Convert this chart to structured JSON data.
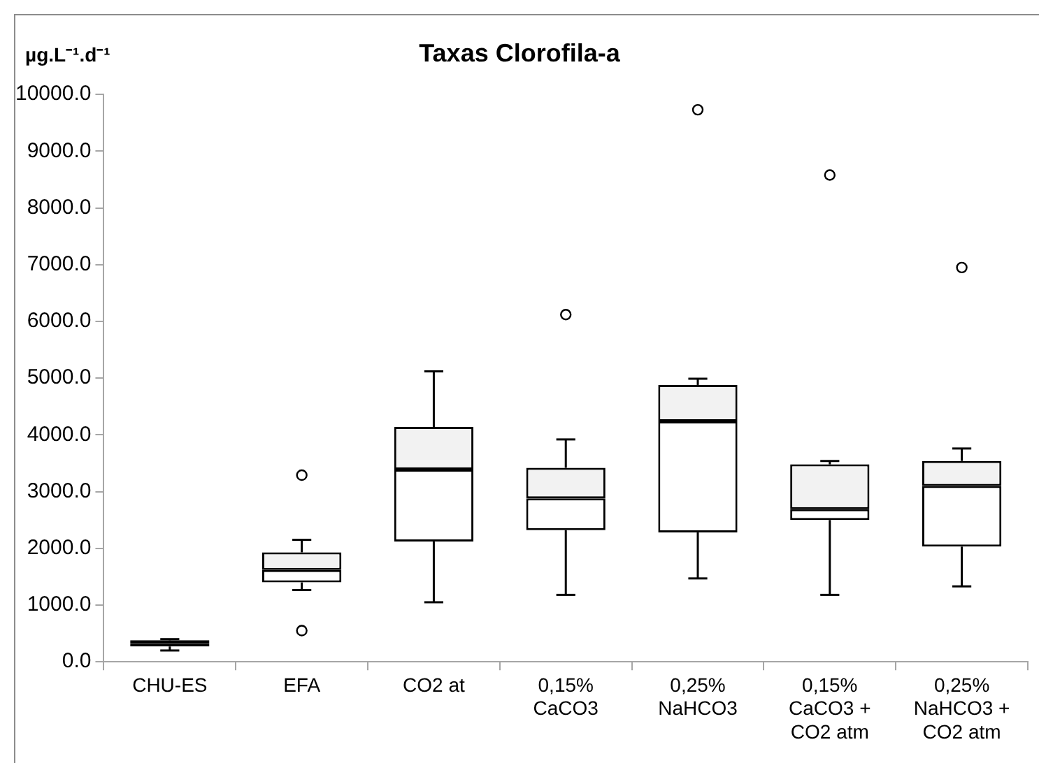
{
  "chart_data": {
    "type": "box",
    "title": "Taxas Clorofila-a",
    "ylabel": "µg.L⁻¹.d⁻¹",
    "categories": [
      "CHU-ES",
      "EFA",
      "CO2 at",
      "0,15% CaCO3",
      "0,25% NaHCO3",
      "0,15% CaCO3 + CO2 atm",
      "0,25% NaHCO3 + CO2 atm"
    ],
    "boxes": [
      {
        "low": 200,
        "q1": 270,
        "median": 320,
        "q3": 380,
        "high": 400
      },
      {
        "low": 1265,
        "q1": 1400,
        "median": 1620,
        "q3": 1930,
        "high": 2150,
        "outliers": [
          3290,
          550
        ]
      },
      {
        "low": 1050,
        "q1": 2120,
        "median": 3390,
        "q3": 4140,
        "high": 5120
      },
      {
        "low": 1180,
        "q1": 2320,
        "median": 2880,
        "q3": 3420,
        "high": 3920,
        "outliers": [
          6120
        ]
      },
      {
        "low": 1470,
        "q1": 2280,
        "median": 4240,
        "q3": 4880,
        "high": 4990,
        "outliers": [
          9730
        ]
      },
      {
        "low": 1180,
        "q1": 2500,
        "median": 2690,
        "q3": 3480,
        "high": 3540,
        "outliers": [
          8580
        ]
      },
      {
        "low": 1330,
        "q1": 2030,
        "median": 3100,
        "q3": 3540,
        "high": 3760,
        "outliers": [
          6950
        ]
      }
    ],
    "ylim": [
      0,
      10000
    ],
    "yticks": [
      {
        "value": 0,
        "label": "0.0"
      },
      {
        "value": 1000,
        "label": "1000.0"
      },
      {
        "value": 2000,
        "label": "2000.0"
      },
      {
        "value": 3000,
        "label": "3000.0"
      },
      {
        "value": 4000,
        "label": "4000.0"
      },
      {
        "value": 5000,
        "label": "5000.0"
      },
      {
        "value": 6000,
        "label": "6000.0"
      },
      {
        "value": 7000,
        "label": "7000.0"
      },
      {
        "value": 8000,
        "label": "8000.0"
      },
      {
        "value": 9000,
        "label": "9000.0"
      },
      {
        "value": 10000,
        "label": "10000.0"
      }
    ]
  }
}
